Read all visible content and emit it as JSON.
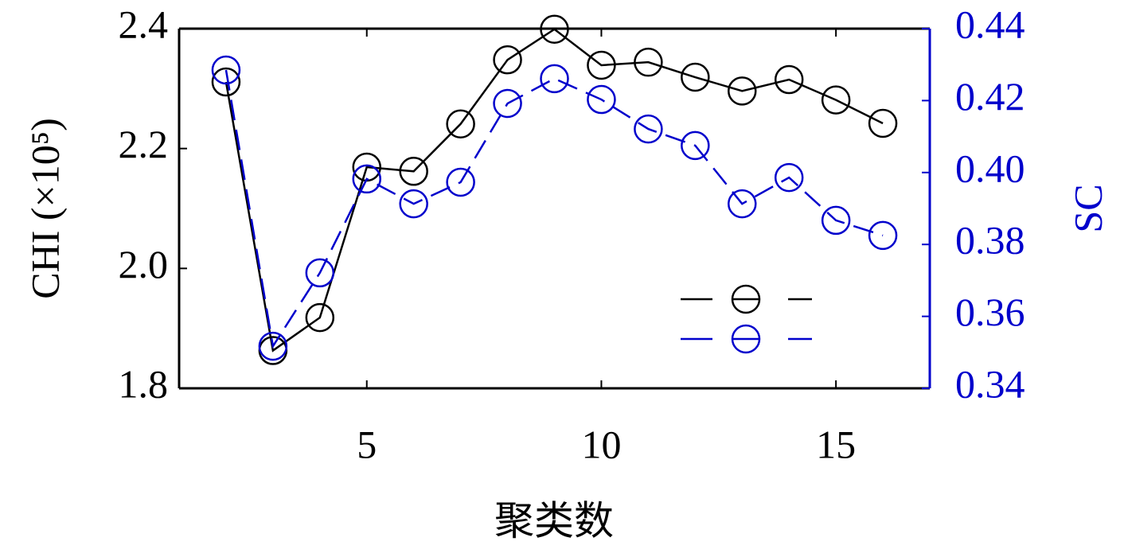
{
  "chart_data": {
    "type": "line",
    "x_label": "聚类数",
    "y_label": "CHI (×10⁵)",
    "y2_label": "SC",
    "x": [
      2,
      3,
      4,
      5,
      6,
      7,
      8,
      9,
      10,
      11,
      12,
      13,
      14,
      15,
      16
    ],
    "series": [
      {
        "color": "#000000",
        "linestyle": "solid",
        "values": [
          2.311,
          1.863,
          1.918,
          2.169,
          2.162,
          2.241,
          2.348,
          2.399,
          2.339,
          2.344,
          2.319,
          2.296,
          2.315,
          2.281,
          2.242
        ]
      },
      {
        "color": "#0000cc",
        "linestyle": "dashed",
        "axis": "y2",
        "values": [
          0.4285,
          0.3517,
          0.3721,
          0.3982,
          0.3913,
          0.3973,
          0.4192,
          0.4261,
          0.4203,
          0.4121,
          0.4075,
          0.3913,
          0.3986,
          0.3867,
          0.3825
        ]
      }
    ],
    "xlim": [
      1,
      17
    ],
    "xticks": [
      5,
      10,
      15
    ],
    "ylim": [
      1.8,
      2.4
    ],
    "yticks": [
      1.8,
      {
        "value": 2,
        "label": "2.0"
      },
      2.2,
      2.4
    ],
    "y2lim": [
      0.34,
      0.44
    ],
    "y2ticks": [
      0.34,
      0.36,
      0.38,
      {
        "value": 0.4,
        "label": "0.40"
      },
      0.42,
      0.44
    ],
    "y2_color": "#0000cc",
    "legend": "lower right"
  }
}
